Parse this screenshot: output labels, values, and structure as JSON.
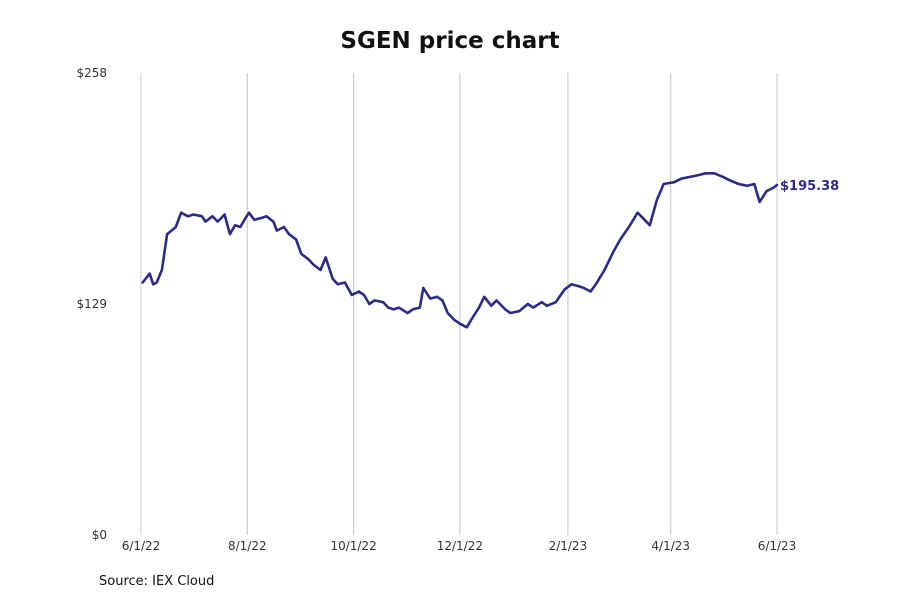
{
  "chart_data": {
    "type": "line",
    "title": "SGEN price chart",
    "xlabel": "",
    "ylabel": "",
    "grid": {
      "vertical": true,
      "horizontal": false
    },
    "y_ticks": [
      {
        "value": 0,
        "label": "$0"
      },
      {
        "value": 129,
        "label": "$129"
      },
      {
        "value": 258,
        "label": "$258"
      }
    ],
    "ylim": [
      0,
      258
    ],
    "x_ticks": [
      {
        "date": "2022-06-01",
        "label": "6/1/22"
      },
      {
        "date": "2022-08-01",
        "label": "8/1/22"
      },
      {
        "date": "2022-10-01",
        "label": "10/1/22"
      },
      {
        "date": "2022-12-01",
        "label": "12/1/22"
      },
      {
        "date": "2023-02-01",
        "label": "2/1/23"
      },
      {
        "date": "2023-04-01",
        "label": "4/1/23"
      },
      {
        "date": "2023-06-01",
        "label": "6/1/23"
      }
    ],
    "xlim": [
      "2022-06-01",
      "2023-06-01"
    ],
    "line_color": "#2e2a86",
    "last_value_label": "$195.38",
    "series": [
      {
        "points": [
          [
            "2022-06-02",
            141
          ],
          [
            "2022-06-06",
            146
          ],
          [
            "2022-06-08",
            140
          ],
          [
            "2022-06-10",
            141
          ],
          [
            "2022-06-13",
            148
          ],
          [
            "2022-06-16",
            168
          ],
          [
            "2022-06-21",
            172
          ],
          [
            "2022-06-24",
            180
          ],
          [
            "2022-06-28",
            178
          ],
          [
            "2022-07-01",
            179
          ],
          [
            "2022-07-06",
            178
          ],
          [
            "2022-07-08",
            175
          ],
          [
            "2022-07-12",
            178
          ],
          [
            "2022-07-15",
            175
          ],
          [
            "2022-07-19",
            179
          ],
          [
            "2022-07-22",
            168
          ],
          [
            "2022-07-25",
            173
          ],
          [
            "2022-07-28",
            172
          ],
          [
            "2022-07-31",
            177
          ],
          [
            "2022-08-02",
            180
          ],
          [
            "2022-08-05",
            176
          ],
          [
            "2022-08-09",
            177
          ],
          [
            "2022-08-12",
            178
          ],
          [
            "2022-08-16",
            175
          ],
          [
            "2022-08-18",
            170
          ],
          [
            "2022-08-22",
            172
          ],
          [
            "2022-08-25",
            168
          ],
          [
            "2022-08-29",
            165
          ],
          [
            "2022-09-01",
            157
          ],
          [
            "2022-09-05",
            154
          ],
          [
            "2022-09-08",
            151
          ],
          [
            "2022-09-12",
            148
          ],
          [
            "2022-09-15",
            155
          ],
          [
            "2022-09-19",
            143
          ],
          [
            "2022-09-22",
            140
          ],
          [
            "2022-09-26",
            141
          ],
          [
            "2022-09-30",
            134
          ],
          [
            "2022-10-04",
            136
          ],
          [
            "2022-10-07",
            134
          ],
          [
            "2022-10-10",
            129
          ],
          [
            "2022-10-13",
            131
          ],
          [
            "2022-10-18",
            130
          ],
          [
            "2022-10-21",
            127
          ],
          [
            "2022-10-24",
            126
          ],
          [
            "2022-10-27",
            127
          ],
          [
            "2022-11-01",
            124
          ],
          [
            "2022-11-04",
            126
          ],
          [
            "2022-11-08",
            127
          ],
          [
            "2022-11-10",
            138
          ],
          [
            "2022-11-14",
            132
          ],
          [
            "2022-11-18",
            133
          ],
          [
            "2022-11-21",
            131
          ],
          [
            "2022-11-24",
            124
          ],
          [
            "2022-11-28",
            120
          ],
          [
            "2022-12-01",
            118
          ],
          [
            "2022-12-05",
            116
          ],
          [
            "2022-12-08",
            121
          ],
          [
            "2022-12-12",
            127
          ],
          [
            "2022-12-15",
            133
          ],
          [
            "2022-12-19",
            128
          ],
          [
            "2022-12-22",
            131
          ],
          [
            "2022-12-27",
            126
          ],
          [
            "2022-12-30",
            124
          ],
          [
            "2023-01-04",
            125
          ],
          [
            "2023-01-09",
            129
          ],
          [
            "2023-01-12",
            127
          ],
          [
            "2023-01-17",
            130
          ],
          [
            "2023-01-20",
            128
          ],
          [
            "2023-01-25",
            130
          ],
          [
            "2023-01-30",
            137
          ],
          [
            "2023-02-03",
            140
          ],
          [
            "2023-02-07",
            139
          ],
          [
            "2023-02-10",
            138
          ],
          [
            "2023-02-14",
            136
          ],
          [
            "2023-02-17",
            140
          ],
          [
            "2023-02-22",
            148
          ],
          [
            "2023-02-27",
            158
          ],
          [
            "2023-03-03",
            165
          ],
          [
            "2023-03-08",
            172
          ],
          [
            "2023-03-13",
            180
          ],
          [
            "2023-03-17",
            176
          ],
          [
            "2023-03-20",
            173
          ],
          [
            "2023-03-24",
            187
          ],
          [
            "2023-03-28",
            196
          ],
          [
            "2023-04-03",
            197
          ],
          [
            "2023-04-07",
            199
          ],
          [
            "2023-04-12",
            200
          ],
          [
            "2023-04-17",
            201
          ],
          [
            "2023-04-21",
            202
          ],
          [
            "2023-04-26",
            202
          ],
          [
            "2023-05-01",
            200
          ],
          [
            "2023-05-05",
            198
          ],
          [
            "2023-05-10",
            196
          ],
          [
            "2023-05-15",
            195
          ],
          [
            "2023-05-19",
            196
          ],
          [
            "2023-05-22",
            186
          ],
          [
            "2023-05-26",
            192
          ],
          [
            "2023-05-30",
            194
          ],
          [
            "2023-06-01",
            195.38
          ]
        ]
      }
    ]
  },
  "footer": {
    "source": "Source: IEX Cloud"
  }
}
